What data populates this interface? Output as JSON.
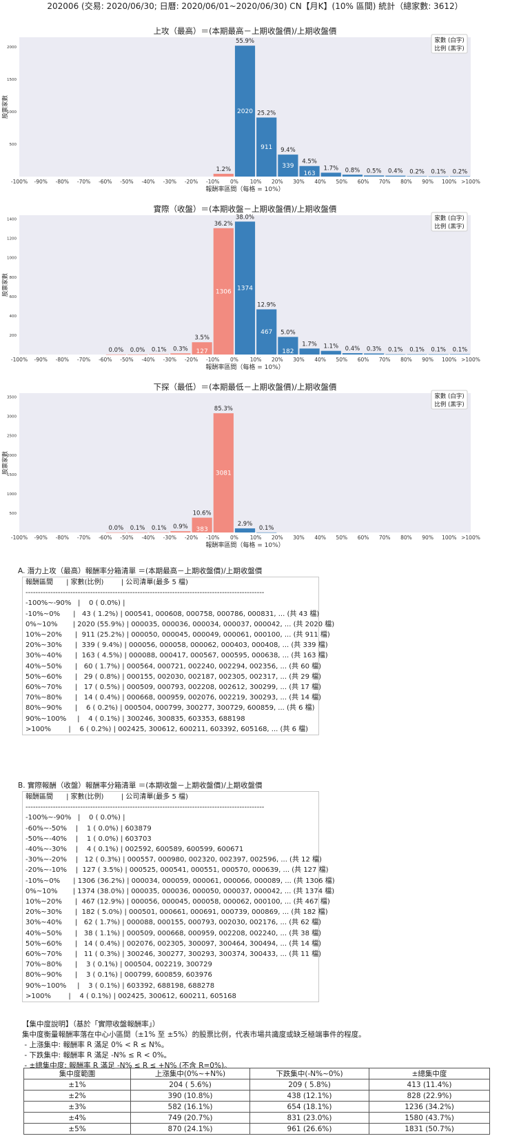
{
  "header": {
    "title": "202006 (交易: 2020/06/30; 日曆: 2020/06/01~2020/06/30) CN【月K】(10% 區間) 統計（總家數: 3612）"
  },
  "legend": {
    "line1": "家數 (白字)",
    "line2": "比例 (黑字)"
  },
  "colors": {
    "negative": "#f28b80",
    "positive": "#3a80bb",
    "plot_bg": "#ebebf3"
  },
  "chart_data": [
    {
      "type": "bar",
      "title": "上攻（最高）＝(本期最高－上期收盤價)/上期收盤價",
      "xlabel": "報酬率區間（每格 = 10%）",
      "ylabel": "股票家數",
      "x_ticks": [
        "-100%",
        "-90%",
        "-80%",
        "-70%",
        "-60%",
        "-50%",
        "-40%",
        "-30%",
        "-20%",
        "-10%",
        "0%",
        "10%",
        "20%",
        "30%",
        "40%",
        "50%",
        "60%",
        "70%",
        "80%",
        "90%",
        "100%",
        ">100%"
      ],
      "y_ticks": [
        500,
        1000,
        1500,
        2000
      ],
      "ylim": [
        0,
        2150
      ],
      "bins": [
        {
          "start": -10,
          "count": 43,
          "pct": "1.2%"
        },
        {
          "start": 0,
          "count": 2020,
          "pct": "55.9%"
        },
        {
          "start": 10,
          "count": 911,
          "pct": "25.2%"
        },
        {
          "start": 20,
          "count": 339,
          "pct": "9.4%"
        },
        {
          "start": 30,
          "count": 163,
          "pct": "4.5%"
        },
        {
          "start": 40,
          "count": 60,
          "pct": "1.7%"
        },
        {
          "start": 50,
          "count": 29,
          "pct": "0.8%"
        },
        {
          "start": 60,
          "count": 17,
          "pct": "0.5%"
        },
        {
          "start": 70,
          "count": 14,
          "pct": "0.4%"
        },
        {
          "start": 80,
          "count": 6,
          "pct": "0.2%"
        },
        {
          "start": 90,
          "count": 4,
          "pct": "0.1%"
        },
        {
          "start": 100,
          "count": 6,
          "pct": "0.2%"
        }
      ]
    },
    {
      "type": "bar",
      "title": "實際（收盤）＝(本期收盤－上期收盤價)/上期收盤價",
      "xlabel": "報酬率區間（每格 = 10%）",
      "ylabel": "股票家數",
      "x_ticks": [
        "-100%",
        "-90%",
        "-80%",
        "-70%",
        "-60%",
        "-50%",
        "-40%",
        "-30%",
        "-20%",
        "-10%",
        "0%",
        "10%",
        "20%",
        "30%",
        "40%",
        "50%",
        "60%",
        "70%",
        "80%",
        "90%",
        "100%",
        ">100%"
      ],
      "y_ticks": [
        200,
        400,
        600,
        800,
        1000,
        1200,
        1400
      ],
      "ylim": [
        0,
        1440
      ],
      "bins": [
        {
          "start": -60,
          "count": 1,
          "pct": "0.0%"
        },
        {
          "start": -50,
          "count": 1,
          "pct": "0.0%"
        },
        {
          "start": -40,
          "count": 4,
          "pct": "0.1%"
        },
        {
          "start": -30,
          "count": 12,
          "pct": "0.3%"
        },
        {
          "start": -20,
          "count": 127,
          "pct": "3.5%"
        },
        {
          "start": -10,
          "count": 1306,
          "pct": "36.2%"
        },
        {
          "start": 0,
          "count": 1374,
          "pct": "38.0%"
        },
        {
          "start": 10,
          "count": 467,
          "pct": "12.9%"
        },
        {
          "start": 20,
          "count": 182,
          "pct": "5.0%"
        },
        {
          "start": 30,
          "count": 62,
          "pct": "1.7%"
        },
        {
          "start": 40,
          "count": 38,
          "pct": "1.1%"
        },
        {
          "start": 50,
          "count": 14,
          "pct": "0.4%"
        },
        {
          "start": 60,
          "count": 11,
          "pct": "0.3%"
        },
        {
          "start": 70,
          "count": 3,
          "pct": "0.1%"
        },
        {
          "start": 80,
          "count": 3,
          "pct": "0.1%"
        },
        {
          "start": 90,
          "count": 3,
          "pct": "0.1%"
        },
        {
          "start": 100,
          "count": 4,
          "pct": "0.1%"
        }
      ]
    },
    {
      "type": "bar",
      "title": "下探（最低）＝(本期最低－上期收盤價)/上期收盤價",
      "xlabel": "報酬率區間（每格 = 10%）",
      "ylabel": "股票家數",
      "x_ticks": [
        "-100%",
        "-90%",
        "-80%",
        "-70%",
        "-60%",
        "-50%",
        "-40%",
        "-30%",
        "-20%",
        "-10%",
        "0%",
        "10%",
        "20%",
        "30%",
        "40%",
        "50%",
        "60%",
        "70%",
        "80%",
        "90%",
        "100%",
        ">100%"
      ],
      "y_ticks": [
        500,
        1000,
        1500,
        2000,
        2500,
        3000,
        3500
      ],
      "ylim": [
        0,
        3600
      ],
      "bins": [
        {
          "start": -60,
          "count": 1,
          "pct": "0.0%"
        },
        {
          "start": -50,
          "count": 2,
          "pct": "0.1%"
        },
        {
          "start": -40,
          "count": 4,
          "pct": "0.1%"
        },
        {
          "start": -30,
          "count": 33,
          "pct": "0.9%"
        },
        {
          "start": -20,
          "count": 383,
          "pct": "10.6%"
        },
        {
          "start": -10,
          "count": 3081,
          "pct": "85.3%"
        },
        {
          "start": 0,
          "count": 106,
          "pct": "2.9%"
        },
        {
          "start": 10,
          "count": 2,
          "pct": "0.1%"
        }
      ]
    }
  ],
  "list_a": {
    "title": "A. 潛力上攻（最高）報酬率分箱清單 ＝(本期最高－上期收盤價)/上期收盤價",
    "lines": [
      "報酬區間      | 家數(比例)        | 公司清單(最多 5 檔)",
      "------------------------------------------------------------------------------------------------",
      "-100%~-90%   |    0 ( 0.0%) |",
      "-10%~0%      |   43 ( 1.2%) | 000541, 000608, 000758, 000786, 000831, ... (共 43 檔)",
      "0%~10%       | 2020 (55.9%) | 000035, 000036, 000034, 000037, 000042, ... (共 2020 檔)",
      "10%~20%      |  911 (25.2%) | 000050, 000045, 000049, 000061, 000100, ... (共 911 檔)",
      "20%~30%      |  339 ( 9.4%) | 000056, 000058, 000062, 000403, 000408, ... (共 339 檔)",
      "30%~40%      |  163 ( 4.5%) | 000088, 000417, 000567, 000595, 000638, ... (共 163 檔)",
      "40%~50%      |   60 ( 1.7%) | 000564, 000721, 002240, 002294, 002356, ... (共 60 檔)",
      "50%~60%      |   29 ( 0.8%) | 000155, 002030, 002187, 002305, 002317, ... (共 29 檔)",
      "60%~70%      |   17 ( 0.5%) | 000509, 000793, 002208, 002612, 300299, ... (共 17 檔)",
      "70%~80%      |   14 ( 0.4%) | 000668, 000959, 002076, 002219, 300293, ... (共 14 檔)",
      "80%~90%      |    6 ( 0.2%) | 000504, 000799, 300277, 300729, 600859, ... (共 6 檔)",
      "90%~100%     |    4 ( 0.1%) | 300246, 300835, 603353, 688198",
      ">100%        |    6 ( 0.2%) | 002425, 300612, 600211, 603392, 605168, ... (共 6 檔)"
    ]
  },
  "list_b": {
    "title": "B. 實際報酬（收盤）報酬率分箱清單 ＝(本期收盤－上期收盤價)/上期收盤價",
    "lines": [
      "報酬區間      | 家數(比例)        | 公司清單(最多 5 檔)",
      "------------------------------------------------------------------------------------------------",
      "-100%~-90%   |    0 ( 0.0%) |",
      "-60%~-50%    |    1 ( 0.0%) | 603879",
      "-50%~-40%    |    1 ( 0.0%) | 603703",
      "-40%~-30%    |    4 ( 0.1%) | 002592, 600589, 600599, 600671",
      "-30%~-20%    |   12 ( 0.3%) | 000557, 000980, 002320, 002397, 002596, ... (共 12 檔)",
      "-20%~-10%    |  127 ( 3.5%) | 000525, 000541, 000551, 000570, 000639, ... (共 127 檔)",
      "-10%~0%      | 1306 (36.2%) | 000034, 000059, 000061, 000066, 000089, ... (共 1306 檔)",
      "0%~10%       | 1374 (38.0%) | 000035, 000036, 000050, 000037, 000042, ... (共 1374 檔)",
      "10%~20%      |  467 (12.9%) | 000056, 000045, 000058, 000062, 000100, ... (共 467 檔)",
      "20%~30%      |  182 ( 5.0%) | 000501, 000661, 000691, 000739, 000869, ... (共 182 檔)",
      "30%~40%      |   62 ( 1.7%) | 000088, 000155, 000793, 002030, 002176, ... (共 62 檔)",
      "40%~50%      |   38 ( 1.1%) | 000509, 000668, 000959, 002208, 002240, ... (共 38 檔)",
      "50%~60%      |   14 ( 0.4%) | 002076, 002305, 300097, 300464, 300494, ... (共 14 檔)",
      "60%~70%      |   11 ( 0.3%) | 300246, 300277, 300293, 300374, 300433, ... (共 11 檔)",
      "70%~80%      |    3 ( 0.1%) | 000504, 002219, 300729",
      "80%~90%      |    3 ( 0.1%) | 000799, 600859, 603976",
      "90%~100%     |    3 ( 0.1%) | 603392, 688198, 688278",
      ">100%        |    4 ( 0.1%) | 002425, 300612, 600211, 605168"
    ]
  },
  "concentration": {
    "heading": "【集中度說明】（基於「實際收盤報酬率」）",
    "desc": "集中度衡量報酬率落在中心小區間（±1% 至 ±5%）的股票比例，代表市場共識度或缺乏極端事件的程度。",
    "bullets": [
      " - 上漲集中: 報酬率 R 滿足 0% < R ≤ N%。",
      " - 下跌集中: 報酬率 R 滿足 -N% ≤ R < 0%。",
      " - ±總集中度: 報酬率 R 滿足 -N% ≤ R ≤ +N% (不含 R=0%)。"
    ],
    "headers": [
      "集中度範圍",
      "上漲集中(0%~+N%)",
      "下跌集中(-N%~0%)",
      "±總集中度"
    ],
    "rows": [
      [
        "±1%",
        "204 ( 5.6%)",
        "209 ( 5.8%)",
        "413 (11.4%)"
      ],
      [
        "±2%",
        "390 (10.8%)",
        "438 (12.1%)",
        "828 (22.9%)"
      ],
      [
        "±3%",
        "582 (16.1%)",
        "654 (18.1%)",
        "1236 (34.2%)"
      ],
      [
        "±4%",
        "749 (20.7%)",
        "831 (23.0%)",
        "1580 (43.7%)"
      ],
      [
        "±5%",
        "870 (24.1%)",
        "961 (26.6%)",
        "1831 (50.7%)"
      ]
    ]
  }
}
